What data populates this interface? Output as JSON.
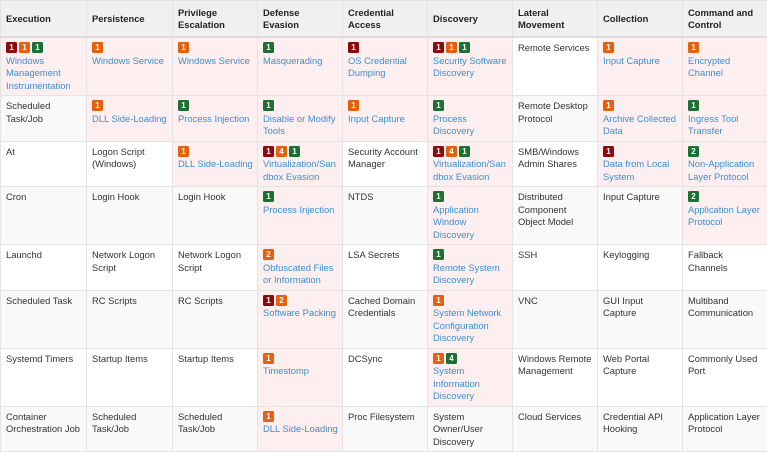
{
  "colors": {
    "high": "#8b0a0a",
    "medium": "#e4600c",
    "low": "#1b7032",
    "link": "#3a8fd0",
    "highlight": "#fdeff0"
  },
  "headers": [
    "Execution",
    "Persistence",
    "Privilege Escalation",
    "Defense Evasion",
    "Credential Access",
    "Discovery",
    "Lateral Movement",
    "Collection",
    "Command and Control"
  ],
  "rows": [
    [
      {
        "text": "Windows Management Instrumentation",
        "badges": [
          {
            "n": "1",
            "level": "high"
          },
          {
            "n": "1",
            "level": "medium"
          },
          {
            "n": "1",
            "level": "low"
          }
        ]
      },
      {
        "text": "Windows Service",
        "badges": [
          {
            "n": "1",
            "level": "medium"
          }
        ]
      },
      {
        "text": "Windows Service",
        "badges": [
          {
            "n": "1",
            "level": "medium"
          }
        ]
      },
      {
        "text": "Masquerading",
        "badges": [
          {
            "n": "1",
            "level": "low"
          }
        ]
      },
      {
        "text": "OS Credential Dumping",
        "badges": [
          {
            "n": "1",
            "level": "high"
          }
        ]
      },
      {
        "text": "Security Software Discovery",
        "badges": [
          {
            "n": "1",
            "level": "high"
          },
          {
            "n": "1",
            "level": "medium"
          },
          {
            "n": "1",
            "level": "low"
          }
        ]
      },
      {
        "text": "Remote Services",
        "badges": []
      },
      {
        "text": "Input Capture",
        "badges": [
          {
            "n": "1",
            "level": "medium"
          }
        ]
      },
      {
        "text": "Encrypted Channel",
        "badges": [
          {
            "n": "1",
            "level": "medium"
          }
        ]
      }
    ],
    [
      {
        "text": "Scheduled Task/Job",
        "badges": []
      },
      {
        "text": "DLL Side-Loading",
        "badges": [
          {
            "n": "1",
            "level": "medium"
          }
        ]
      },
      {
        "text": "Process Injection",
        "badges": [
          {
            "n": "1",
            "level": "low"
          }
        ]
      },
      {
        "text": "Disable or Modify Tools",
        "badges": [
          {
            "n": "1",
            "level": "low"
          }
        ]
      },
      {
        "text": "Input Capture",
        "badges": [
          {
            "n": "1",
            "level": "medium"
          }
        ]
      },
      {
        "text": "Process Discovery",
        "badges": [
          {
            "n": "1",
            "level": "low"
          }
        ]
      },
      {
        "text": "Remote Desktop Protocol",
        "badges": []
      },
      {
        "text": "Archive Collected Data",
        "badges": [
          {
            "n": "1",
            "level": "medium"
          }
        ]
      },
      {
        "text": "Ingress Tool Transfer",
        "badges": [
          {
            "n": "1",
            "level": "low"
          }
        ]
      }
    ],
    [
      {
        "text": "At",
        "badges": []
      },
      {
        "text": "Logon Script (Windows)",
        "badges": []
      },
      {
        "text": "DLL Side-Loading",
        "badges": [
          {
            "n": "1",
            "level": "medium"
          }
        ]
      },
      {
        "text": "Virtualization/Sandbox Evasion",
        "badges": [
          {
            "n": "1",
            "level": "high"
          },
          {
            "n": "4",
            "level": "medium"
          },
          {
            "n": "1",
            "level": "low"
          }
        ]
      },
      {
        "text": "Security Account Manager",
        "badges": []
      },
      {
        "text": "Virtualization/Sandbox Evasion",
        "badges": [
          {
            "n": "1",
            "level": "high"
          },
          {
            "n": "4",
            "level": "medium"
          },
          {
            "n": "1",
            "level": "low"
          }
        ]
      },
      {
        "text": "SMB/Windows Admin Shares",
        "badges": []
      },
      {
        "text": "Data from Local System",
        "badges": [
          {
            "n": "1",
            "level": "high"
          }
        ]
      },
      {
        "text": "Non-Application Layer Protocol",
        "badges": [
          {
            "n": "2",
            "level": "low"
          }
        ]
      }
    ],
    [
      {
        "text": "Cron",
        "badges": []
      },
      {
        "text": "Login Hook",
        "badges": []
      },
      {
        "text": "Login Hook",
        "badges": []
      },
      {
        "text": "Process Injection",
        "badges": [
          {
            "n": "1",
            "level": "low"
          }
        ]
      },
      {
        "text": "NTDS",
        "badges": []
      },
      {
        "text": "Application Window Discovery",
        "badges": [
          {
            "n": "1",
            "level": "low"
          }
        ]
      },
      {
        "text": "Distributed Component Object Model",
        "badges": []
      },
      {
        "text": "Input Capture",
        "badges": []
      },
      {
        "text": "Application Layer Protocol",
        "badges": [
          {
            "n": "2",
            "level": "low"
          }
        ]
      }
    ],
    [
      {
        "text": "Launchd",
        "badges": []
      },
      {
        "text": "Network Logon Script",
        "badges": []
      },
      {
        "text": "Network Logon Script",
        "badges": []
      },
      {
        "text": "Obfuscated Files or Information",
        "badges": [
          {
            "n": "2",
            "level": "medium"
          }
        ]
      },
      {
        "text": "LSA Secrets",
        "badges": []
      },
      {
        "text": "Remote System Discovery",
        "badges": [
          {
            "n": "1",
            "level": "low"
          }
        ]
      },
      {
        "text": "SSH",
        "badges": []
      },
      {
        "text": "Keylogging",
        "badges": []
      },
      {
        "text": "Fallback Channels",
        "badges": []
      }
    ],
    [
      {
        "text": "Scheduled Task",
        "badges": []
      },
      {
        "text": "RC Scripts",
        "badges": []
      },
      {
        "text": "RC Scripts",
        "badges": []
      },
      {
        "text": "Software Packing",
        "badges": [
          {
            "n": "1",
            "level": "high"
          },
          {
            "n": "2",
            "level": "medium"
          }
        ]
      },
      {
        "text": "Cached Domain Credentials",
        "badges": []
      },
      {
        "text": "System Network Configuration Discovery",
        "badges": [
          {
            "n": "1",
            "level": "medium"
          }
        ]
      },
      {
        "text": "VNC",
        "badges": []
      },
      {
        "text": "GUI Input Capture",
        "badges": []
      },
      {
        "text": "Multiband Communication",
        "badges": []
      }
    ],
    [
      {
        "text": "Systemd Timers",
        "badges": []
      },
      {
        "text": "Startup Items",
        "badges": []
      },
      {
        "text": "Startup Items",
        "badges": []
      },
      {
        "text": "Timestomp",
        "badges": [
          {
            "n": "1",
            "level": "medium"
          }
        ]
      },
      {
        "text": "DCSync",
        "badges": []
      },
      {
        "text": "System Information Discovery",
        "badges": [
          {
            "n": "1",
            "level": "medium"
          },
          {
            "n": "4",
            "level": "low"
          }
        ]
      },
      {
        "text": "Windows Remote Management",
        "badges": []
      },
      {
        "text": "Web Portal Capture",
        "badges": []
      },
      {
        "text": "Commonly Used Port",
        "badges": []
      }
    ],
    [
      {
        "text": "Container Orchestration Job",
        "badges": []
      },
      {
        "text": "Scheduled Task/Job",
        "badges": []
      },
      {
        "text": "Scheduled Task/Job",
        "badges": []
      },
      {
        "text": "DLL Side-Loading",
        "badges": [
          {
            "n": "1",
            "level": "medium"
          }
        ]
      },
      {
        "text": "Proc Filesystem",
        "badges": []
      },
      {
        "text": "System Owner/User Discovery",
        "badges": []
      },
      {
        "text": "Cloud Services",
        "badges": []
      },
      {
        "text": "Credential API Hooking",
        "badges": []
      },
      {
        "text": "Application Layer Protocol",
        "badges": []
      }
    ]
  ]
}
